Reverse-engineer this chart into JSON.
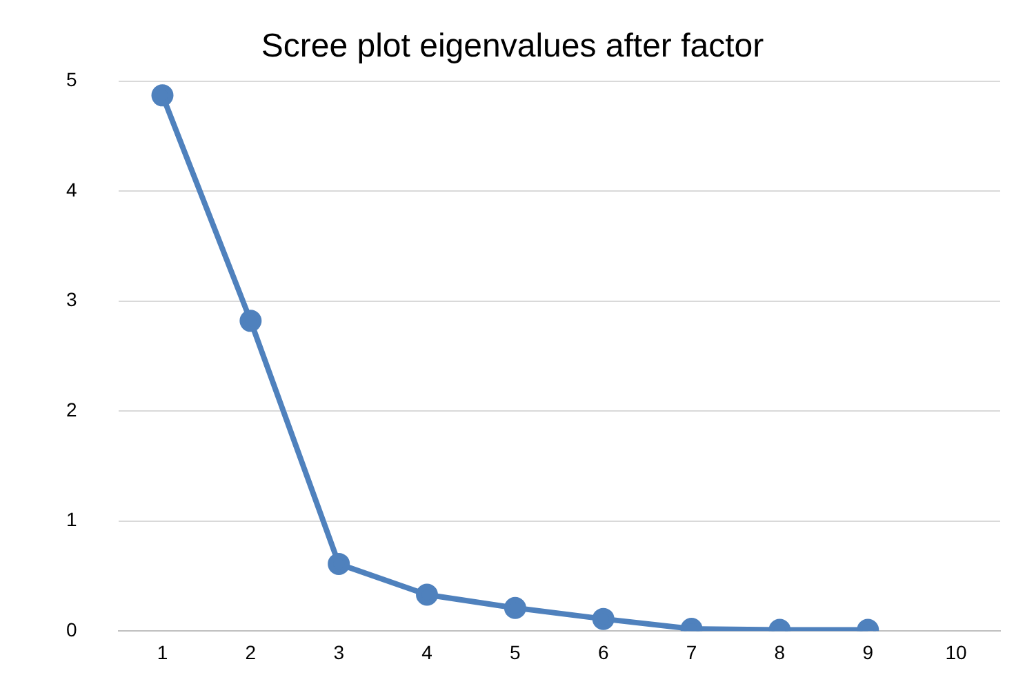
{
  "chart_data": {
    "type": "line",
    "title": "Scree plot eigenvalues after factor",
    "categories": [
      "1",
      "2",
      "3",
      "4",
      "5",
      "6",
      "7",
      "8",
      "9",
      "10"
    ],
    "series": [
      {
        "color": "#4f81bd",
        "values": [
          4.87,
          2.82,
          0.61,
          0.33,
          0.21,
          0.11,
          0.02,
          0.01,
          0.01,
          null
        ]
      }
    ],
    "ylim": [
      0,
      5
    ],
    "yticks": [
      0,
      1,
      2,
      3,
      4,
      5
    ],
    "grid": "y",
    "legend": false,
    "marker": "circle",
    "line_style": "solid"
  }
}
